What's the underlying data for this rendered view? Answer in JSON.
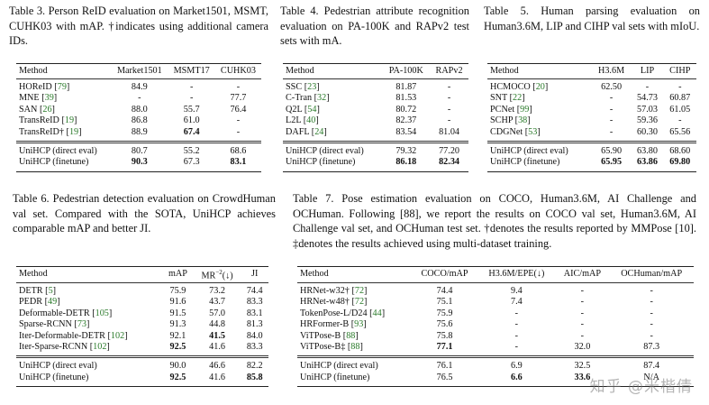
{
  "t3": {
    "caption": "Table 3. Person ReID evaluation on Market1501, MSMT, CUHK03 with mAP. †indicates using additional camera IDs.",
    "headers": [
      "Method",
      "Market1501",
      "MSMT17",
      "CUHK03"
    ],
    "rows": [
      [
        "HOReID",
        "79",
        "84.9",
        "-",
        "-"
      ],
      [
        "MNE",
        "39",
        "-",
        "-",
        "77.7"
      ],
      [
        "SAN",
        "26",
        "88.0",
        "55.7",
        "76.4"
      ],
      [
        "TransReID",
        "19",
        "86.8",
        "61.0",
        "-"
      ],
      [
        "TransReID†",
        "19",
        "88.9",
        "67.4",
        "-"
      ]
    ],
    "ours": [
      [
        "UniHCP (direct eval)",
        "",
        "80.7",
        "55.2",
        "68.6"
      ],
      [
        "UniHCP (finetune)",
        "",
        "90.3",
        "67.3",
        "83.1"
      ]
    ]
  },
  "t4": {
    "caption": "Table 4. Pedestrian attribute recognition evaluation on PA-100K and RAPv2 test sets with mA.",
    "headers": [
      "Method",
      "PA-100K",
      "RAPv2"
    ],
    "rows": [
      [
        "SSC",
        "23",
        "81.87",
        "-"
      ],
      [
        "C-Tran",
        "32",
        "81.53",
        "-"
      ],
      [
        "Q2L",
        "54",
        "80.72",
        "-"
      ],
      [
        "L2L",
        "40",
        "82.37",
        "-"
      ],
      [
        "DAFL",
        "24",
        "83.54",
        "81.04"
      ]
    ],
    "ours": [
      [
        "UniHCP (direct eval)",
        "",
        "79.32",
        "77.20"
      ],
      [
        "UniHCP (finetune)",
        "",
        "86.18",
        "82.34"
      ]
    ]
  },
  "t5": {
    "caption": "Table 5. Human parsing evaluation on Human3.6M, LIP and CIHP val sets with mIoU.",
    "headers": [
      "Method",
      "H3.6M",
      "LIP",
      "CIHP"
    ],
    "rows": [
      [
        "HCMOCO",
        "20",
        "62.50",
        "-",
        "-"
      ],
      [
        "SNT",
        "22",
        "-",
        "54.73",
        "60.87"
      ],
      [
        "PCNet",
        "99",
        "-",
        "57.03",
        "61.05"
      ],
      [
        "SCHP",
        "38",
        "-",
        "59.36",
        "-"
      ],
      [
        "CDGNet",
        "53",
        "-",
        "60.30",
        "65.56"
      ]
    ],
    "ours": [
      [
        "UniHCP (direct eval)",
        "",
        "65.90",
        "63.80",
        "68.60"
      ],
      [
        "UniHCP (finetune)",
        "",
        "65.95",
        "63.86",
        "69.80"
      ]
    ]
  },
  "t6": {
    "caption": "Table 6. Pedestrian detection evaluation on CrowdHuman val set. Compared with the SOTA, UniHCP achieves comparable mAP and better JI.",
    "headers": [
      "Method",
      "mAP",
      "MR−2(↓)",
      "JI"
    ],
    "rows": [
      [
        "DETR",
        "5",
        "75.9",
        "73.2",
        "74.4"
      ],
      [
        "PEDR",
        "49",
        "91.6",
        "43.7",
        "83.3"
      ],
      [
        "Deformable-DETR",
        "105",
        "91.5",
        "57.0",
        "83.1"
      ],
      [
        "Sparse-RCNN",
        "73",
        "91.3",
        "44.8",
        "81.3"
      ],
      [
        "Iter-Deformable-DETR",
        "102",
        "92.1",
        "41.5",
        "84.0"
      ],
      [
        "Iter-Sparse-RCNN",
        "102",
        "92.5",
        "41.6",
        "83.3"
      ]
    ],
    "ours": [
      [
        "UniHCP (direct eval)",
        "",
        "90.0",
        "46.6",
        "82.2"
      ],
      [
        "UniHCP (finetune)",
        "",
        "92.5",
        "41.6",
        "85.8"
      ]
    ]
  },
  "t7": {
    "caption": "Table 7. Pose estimation evaluation on COCO, Human3.6M, AI Challenge and OCHuman. Following [88], we report the results on COCO val set, Human3.6M, AI Challenge val set, and OCHuman test set. †denotes the results reported by MMPose [10]. ‡denotes the results achieved using multi-dataset training.",
    "headers": [
      "Method",
      "COCO/mAP",
      "H3.6M/EPE(↓)",
      "AIC/mAP",
      "OCHuman/mAP"
    ],
    "rows": [
      [
        "HRNet-w32†",
        "72",
        "74.4",
        "9.4",
        "-",
        "-"
      ],
      [
        "HRNet-w48†",
        "72",
        "75.1",
        "7.4",
        "-",
        "-"
      ],
      [
        "TokenPose-L/D24",
        "44",
        "75.9",
        "-",
        "-",
        "-"
      ],
      [
        "HRFormer-B",
        "93",
        "75.6",
        "-",
        "-",
        "-"
      ],
      [
        "ViTPose-B",
        "88",
        "75.8",
        "-",
        "-",
        "-"
      ],
      [
        "ViTPose-B‡",
        "88",
        "77.1",
        "-",
        "32.0",
        "87.3"
      ]
    ],
    "ours": [
      [
        "UniHCP (direct eval)",
        "",
        "76.1",
        "6.9",
        "32.5",
        "87.4"
      ],
      [
        "UniHCP (finetune)",
        "",
        "76.5",
        "6.6",
        "33.6",
        "N/A"
      ]
    ]
  },
  "watermark": "知乎 @米楷倩"
}
